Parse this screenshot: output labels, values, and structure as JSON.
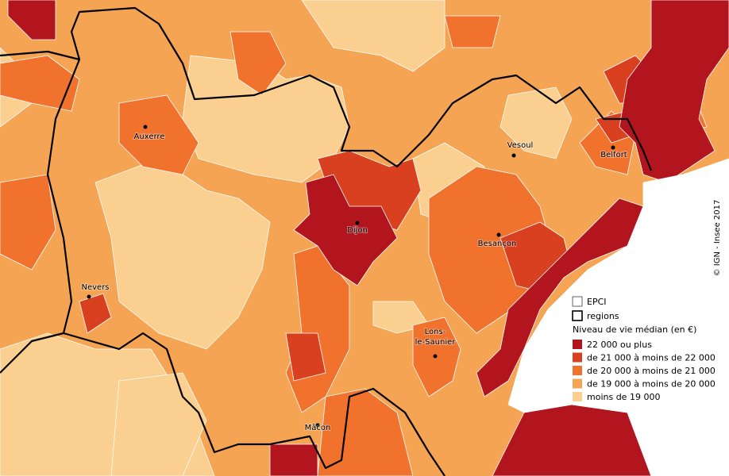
{
  "cities": [
    {
      "label": "Auxerre"
    },
    {
      "label": "Vesoul"
    },
    {
      "label": "Belfort"
    },
    {
      "label": "Dijon"
    },
    {
      "label": "Besançon"
    },
    {
      "label": "Nevers"
    },
    {
      "label_lines": [
        "Lons-",
        "le-Saunier"
      ]
    },
    {
      "label": "Mâcon"
    }
  ],
  "legend": {
    "outline_items": [
      "EPCI",
      "regions"
    ],
    "title": "Niveau de vie médian (en €)",
    "classes": [
      {
        "label": "22 000 ou plus",
        "color": "#b3151f"
      },
      {
        "label": "de 21 000 à moins de 22 000",
        "color": "#d8401f"
      },
      {
        "label": "de 20 000 à moins de 21 000",
        "color": "#f0722d"
      },
      {
        "label": "de 19 000 à moins de 20 000",
        "color": "#f4a452"
      },
      {
        "label": "moins de 19 000",
        "color": "#fbcf8f"
      }
    ]
  },
  "credit": "© IGN - Insee 2017"
}
